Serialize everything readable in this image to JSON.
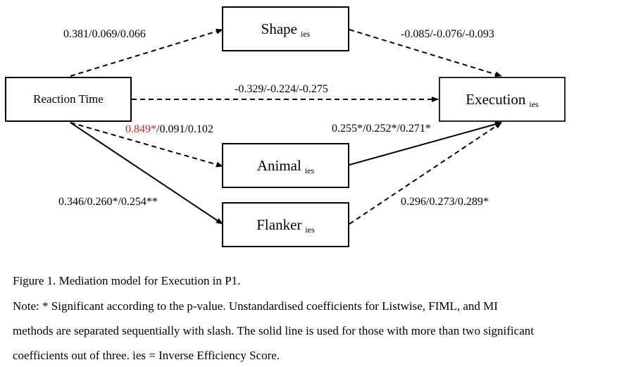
{
  "nodes": {
    "reaction_time": {
      "label": "Reaction Time",
      "sub": ""
    },
    "shape": {
      "label": "Shape",
      "sub": "ies"
    },
    "animal": {
      "label": "Animal",
      "sub": "ies"
    },
    "flanker": {
      "label": "Flanker",
      "sub": "ies"
    },
    "execution": {
      "label": "Execution",
      "sub": "ies"
    }
  },
  "paths": {
    "rt_shape": {
      "text": "0.381/0.069/0.066",
      "style": "dashed"
    },
    "shape_exec": {
      "text": "-0.085/-0.076/-0.093",
      "style": "dashed"
    },
    "rt_exec": {
      "text": "-0.329/-0.224/-0.275",
      "style": "dashed"
    },
    "rt_animal": {
      "highlight": "0.849*",
      "rest": "/0.091/0.102",
      "highlight_color": "#e0201b",
      "style": "dashed"
    },
    "animal_exec": {
      "text": "0.255*/0.252*/0.271*",
      "style": "solid"
    },
    "rt_flanker": {
      "text": "0.346/0.260*/0.254**",
      "style": "solid"
    },
    "flanker_exec": {
      "text": "0.296/0.273/0.289*",
      "style": "dashed"
    }
  },
  "caption": {
    "title": "Figure 1. Mediation model for Execution in P1.",
    "note_1": "Note: * Significant according to the p-value. Unstandardised coefficients for Listwise, FIML, and MI",
    "note_2": "methods are separated sequentially with slash. The solid line is used for those with more than two significant",
    "note_3": "coefficients out of three. ies = Inverse Efficiency Score."
  }
}
